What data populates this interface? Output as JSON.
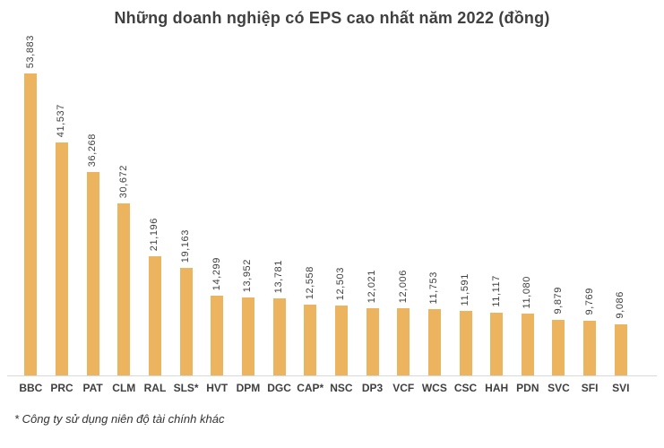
{
  "title": "Những doanh nghiệp có EPS cao nhất năm 2022 (đồng)",
  "footnote": "* Công ty sử dụng niên độ tài chính khác",
  "colors": {
    "bar": "#edb45f",
    "text": "#404040",
    "axis_line": "#d9d9d9"
  },
  "chart_data": {
    "type": "bar",
    "title": "Những doanh nghiệp có EPS cao nhất năm 2022 (đồng)",
    "xlabel": "",
    "ylabel": "",
    "ylim": [
      0,
      55000
    ],
    "grid": false,
    "legend": "none",
    "value_label_rotation": 90,
    "categories": [
      "BBC",
      "PRC",
      "PAT",
      "CLM",
      "RAL",
      "SLS*",
      "HVT",
      "DPM",
      "DGC",
      "CAP*",
      "NSC",
      "DP3",
      "VCF",
      "WCS",
      "CSC",
      "HAH",
      "PDN",
      "SVC",
      "SFI",
      "SVI"
    ],
    "values": [
      53883,
      41537,
      36268,
      30672,
      21196,
      19163,
      14299,
      13952,
      13781,
      12558,
      12503,
      12021,
      12006,
      11753,
      11591,
      11117,
      11080,
      9879,
      9769,
      9086
    ],
    "value_labels": [
      "53,883",
      "41,537",
      "36,268",
      "30,672",
      "21,196",
      "19,163",
      "14,299",
      "13,952",
      "13,781",
      "12,558",
      "12,503",
      "12,021",
      "12,006",
      "11,753",
      "11,591",
      "11,117",
      "11,080",
      "9,879",
      "9,769",
      "9,086"
    ],
    "footnote": "* Công ty sử dụng niên độ tài chính khác"
  }
}
